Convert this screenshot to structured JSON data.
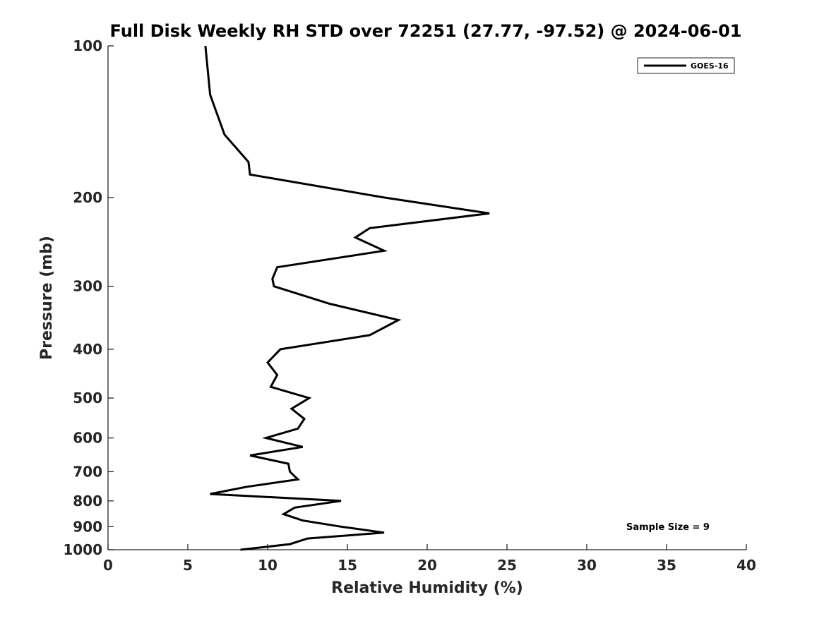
{
  "chart_data": {
    "type": "line",
    "title": "Full Disk Weekly RH STD over 72251 (27.77, -97.52) @ 2024-06-01",
    "xlabel": "Relative Humidity (%)",
    "ylabel": "Pressure (mb)",
    "xlim": [
      0,
      40
    ],
    "ylim": [
      100,
      1000
    ],
    "yscale": "log",
    "y_reversed": true,
    "xticks": [
      0,
      5,
      10,
      15,
      20,
      25,
      30,
      35,
      40
    ],
    "yticks": [
      100,
      200,
      300,
      400,
      500,
      600,
      700,
      800,
      900,
      1000
    ],
    "grid": false,
    "legend_position": "top-right",
    "series": [
      {
        "name": "GOES-16",
        "color": "#000000",
        "points": [
          [
            6.1,
            100
          ],
          [
            6.4,
            125
          ],
          [
            7.3,
            150
          ],
          [
            8.8,
            170
          ],
          [
            8.9,
            180
          ],
          [
            17.3,
            200
          ],
          [
            23.9,
            215
          ],
          [
            16.4,
            230
          ],
          [
            15.5,
            240
          ],
          [
            17.3,
            255
          ],
          [
            10.6,
            275
          ],
          [
            10.3,
            290
          ],
          [
            10.4,
            300
          ],
          [
            13.9,
            325
          ],
          [
            18.2,
            350
          ],
          [
            16.4,
            375
          ],
          [
            10.8,
            400
          ],
          [
            10.0,
            425
          ],
          [
            10.6,
            450
          ],
          [
            10.2,
            475
          ],
          [
            12.6,
            500
          ],
          [
            11.5,
            525
          ],
          [
            12.3,
            550
          ],
          [
            11.9,
            575
          ],
          [
            9.9,
            600
          ],
          [
            12.2,
            625
          ],
          [
            8.9,
            650
          ],
          [
            11.3,
            675
          ],
          [
            11.4,
            700
          ],
          [
            11.9,
            725
          ],
          [
            8.7,
            750
          ],
          [
            6.4,
            775
          ],
          [
            14.6,
            800
          ],
          [
            11.7,
            825
          ],
          [
            11.0,
            850
          ],
          [
            12.2,
            875
          ],
          [
            14.6,
            900
          ],
          [
            17.3,
            925
          ],
          [
            12.5,
            950
          ],
          [
            11.4,
            975
          ],
          [
            8.3,
            1000
          ]
        ]
      }
    ],
    "annotations": [
      "Sample Size = 9"
    ]
  }
}
